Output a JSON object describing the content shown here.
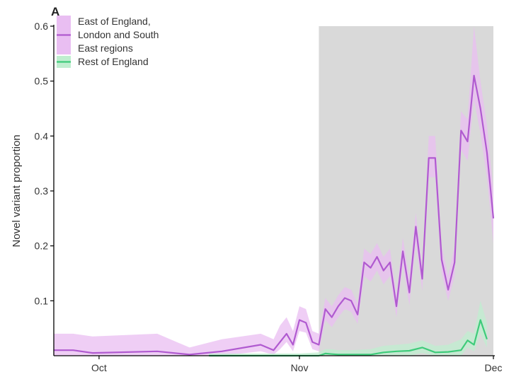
{
  "chart_data": {
    "type": "line",
    "panel_label": "A",
    "title": "",
    "xlabel": "",
    "ylabel": "Novel variant proportion",
    "ylim": [
      0,
      0.6
    ],
    "xlim": [
      "2020-09-24",
      "2020-12-01"
    ],
    "x_ticks": [
      {
        "label": "Oct",
        "date": "2020-10-01"
      },
      {
        "label": "Nov",
        "date": "2020-11-01"
      },
      {
        "label": "Dec",
        "date": "2020-12-01"
      }
    ],
    "y_ticks": [
      {
        "label": "0.1",
        "value": 0.1
      },
      {
        "label": "0.2",
        "value": 0.2
      },
      {
        "label": "0.3",
        "value": 0.3
      },
      {
        "label": "0.4",
        "value": 0.4
      },
      {
        "label": "0.5",
        "value": 0.5
      },
      {
        "label": "0.6",
        "value": 0.6
      }
    ],
    "shaded_period": {
      "start": "2020-11-04",
      "end": "2020-12-01",
      "color": "#d9d9d9"
    },
    "legend_position": "top-left",
    "series": [
      {
        "name": "East of England, London and South East regions",
        "legend_lines": [
          "East of England,",
          "London and South",
          "East regions"
        ],
        "color": "#b05ad0",
        "band_color": "#e9bef2",
        "x": [
          "2020-09-24",
          "2020-09-27",
          "2020-09-30",
          "2020-10-10",
          "2020-10-15",
          "2020-10-20",
          "2020-10-26",
          "2020-10-27",
          "2020-10-28",
          "2020-10-29",
          "2020-10-30",
          "2020-10-31",
          "2020-11-01",
          "2020-11-02",
          "2020-11-03",
          "2020-11-04",
          "2020-11-05",
          "2020-11-06",
          "2020-11-07",
          "2020-11-08",
          "2020-11-09",
          "2020-11-10",
          "2020-11-11",
          "2020-11-12",
          "2020-11-13",
          "2020-11-14",
          "2020-11-15",
          "2020-11-16",
          "2020-11-17",
          "2020-11-18",
          "2020-11-19",
          "2020-11-20",
          "2020-11-21",
          "2020-11-22",
          "2020-11-23",
          "2020-11-24",
          "2020-11-25",
          "2020-11-26",
          "2020-11-27",
          "2020-11-28",
          "2020-11-29",
          "2020-11-30",
          "2020-12-01"
        ],
        "y": [
          0.01,
          0.01,
          0.005,
          0.008,
          0.002,
          0.008,
          0.02,
          0.015,
          0.01,
          0.025,
          0.04,
          0.02,
          0.065,
          0.06,
          0.025,
          0.02,
          0.085,
          0.07,
          0.09,
          0.105,
          0.1,
          0.075,
          0.17,
          0.16,
          0.18,
          0.155,
          0.17,
          0.09,
          0.19,
          0.115,
          0.235,
          0.14,
          0.36,
          0.36,
          0.175,
          0.12,
          0.17,
          0.41,
          0.39,
          0.51,
          0.45,
          0.37,
          0.25
        ],
        "lower": [
          0.0,
          0.0,
          0.0,
          0.0,
          0.0,
          0.0,
          0.008,
          0.005,
          0.002,
          0.012,
          0.025,
          0.008,
          0.045,
          0.042,
          0.012,
          0.008,
          0.065,
          0.052,
          0.07,
          0.085,
          0.08,
          0.058,
          0.145,
          0.135,
          0.155,
          0.13,
          0.145,
          0.07,
          0.165,
          0.092,
          0.205,
          0.118,
          0.325,
          0.325,
          0.15,
          0.1,
          0.145,
          0.375,
          0.355,
          0.465,
          0.405,
          0.325,
          0.205
        ],
        "upper": [
          0.04,
          0.04,
          0.035,
          0.04,
          0.015,
          0.03,
          0.04,
          0.035,
          0.03,
          0.055,
          0.07,
          0.045,
          0.09,
          0.085,
          0.045,
          0.04,
          0.105,
          0.09,
          0.11,
          0.125,
          0.12,
          0.095,
          0.195,
          0.185,
          0.205,
          0.18,
          0.195,
          0.11,
          0.215,
          0.14,
          0.26,
          0.162,
          0.4,
          0.4,
          0.2,
          0.145,
          0.2,
          0.445,
          0.43,
          0.6,
          0.5,
          0.42,
          0.3
        ]
      },
      {
        "name": "Rest of England",
        "legend_lines": [
          "Rest of England"
        ],
        "color": "#3ecb7a",
        "band_color": "#bfeecf",
        "x": [
          "2020-10-18",
          "2020-10-25",
          "2020-11-01",
          "2020-11-04",
          "2020-11-05",
          "2020-11-06",
          "2020-11-07",
          "2020-11-09",
          "2020-11-12",
          "2020-11-14",
          "2020-11-16",
          "2020-11-18",
          "2020-11-20",
          "2020-11-22",
          "2020-11-24",
          "2020-11-26",
          "2020-11-27",
          "2020-11-28",
          "2020-11-29",
          "2020-11-30"
        ],
        "y": [
          0.0,
          0.0,
          0.0,
          0.0,
          0.004,
          0.003,
          0.002,
          0.002,
          0.002,
          0.006,
          0.008,
          0.009,
          0.015,
          0.006,
          0.007,
          0.01,
          0.028,
          0.02,
          0.065,
          0.03
        ],
        "lower": [
          0.0,
          0.0,
          0.0,
          0.0,
          0.0,
          0.0,
          0.0,
          0.0,
          0.0,
          0.0,
          0.0,
          0.0,
          0.005,
          0.0,
          0.0,
          0.0,
          0.015,
          0.008,
          0.04,
          0.015
        ],
        "upper": [
          0.004,
          0.004,
          0.004,
          0.006,
          0.012,
          0.012,
          0.01,
          0.01,
          0.012,
          0.018,
          0.02,
          0.022,
          0.028,
          0.018,
          0.02,
          0.03,
          0.045,
          0.04,
          0.1,
          0.06
        ]
      }
    ]
  }
}
